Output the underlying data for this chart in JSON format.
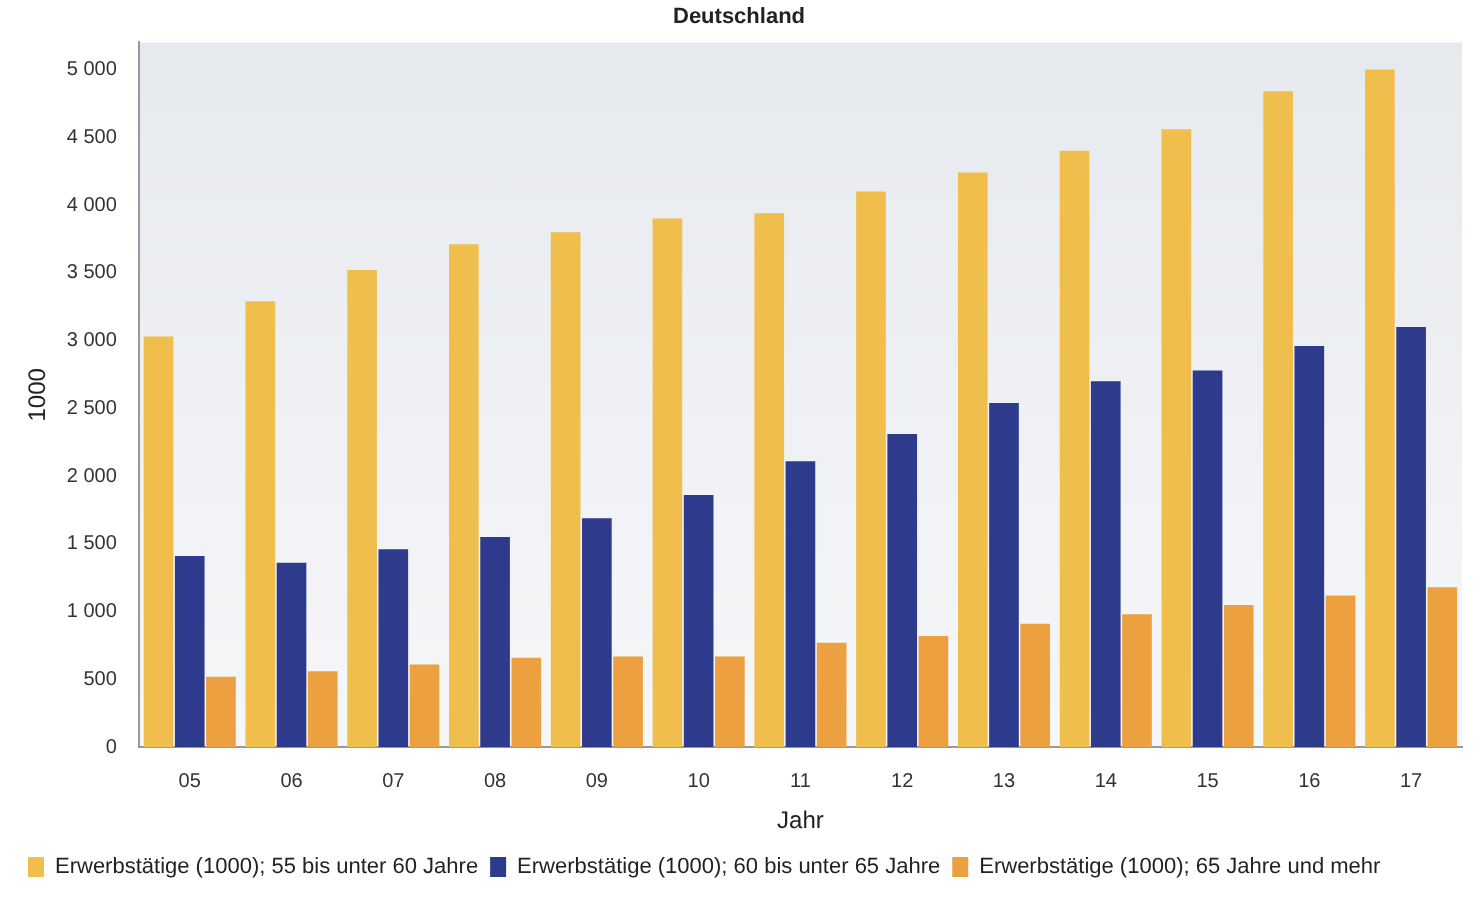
{
  "chart_data": {
    "type": "bar",
    "title": "Deutschland",
    "xlabel": "Jahr",
    "ylabel": "1000",
    "categories": [
      "05",
      "06",
      "07",
      "08",
      "09",
      "10",
      "11",
      "12",
      "13",
      "14",
      "15",
      "16",
      "17"
    ],
    "series": [
      {
        "name": "Erwerbstätige (1000); 55 bis unter 60 Jahre",
        "color": "#efbe4c",
        "values": [
          3030,
          3290,
          3520,
          3710,
          3800,
          3900,
          3940,
          4100,
          4240,
          4400,
          4560,
          4840,
          5000
        ]
      },
      {
        "name": "Erwerbstätige (1000); 60 bis unter 65 Jahre",
        "color": "#2e3a8c",
        "values": [
          1410,
          1360,
          1460,
          1550,
          1690,
          1860,
          2110,
          2310,
          2540,
          2700,
          2780,
          2960,
          3100
        ]
      },
      {
        "name": "Erwerbstätige (1000); 65 Jahre und mehr",
        "color": "#eca040",
        "values": [
          520,
          560,
          610,
          660,
          670,
          670,
          770,
          820,
          910,
          980,
          1050,
          1120,
          1180
        ]
      }
    ],
    "ylim": [
      0,
      5200
    ],
    "yticks": [
      {
        "value": 0,
        "label": "0"
      },
      {
        "value": 500,
        "label": "500"
      },
      {
        "value": 1000,
        "label": "1 000"
      },
      {
        "value": 1500,
        "label": "1 500"
      },
      {
        "value": 2000,
        "label": "2 000"
      },
      {
        "value": 2500,
        "label": "2 500"
      },
      {
        "value": 3000,
        "label": "3 000"
      },
      {
        "value": 3500,
        "label": "3 500"
      },
      {
        "value": 4000,
        "label": "4 000"
      },
      {
        "value": 4500,
        "label": "4 500"
      },
      {
        "value": 5000,
        "label": "5 000"
      }
    ],
    "grid": false,
    "legend": "bottom left"
  }
}
